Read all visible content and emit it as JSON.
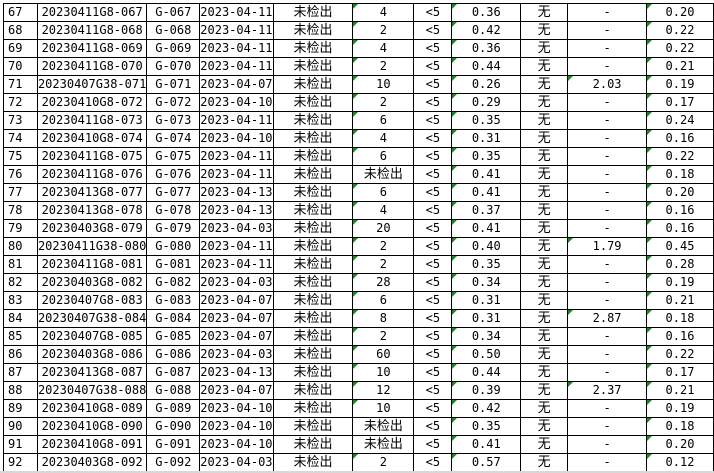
{
  "sheet": {
    "rows": [
      [
        "67",
        "20230411G8-067",
        "G-067",
        "2023-04-11",
        "未检出",
        "4",
        "<5",
        "0.36",
        "无",
        "-",
        "0.20"
      ],
      [
        "68",
        "20230411G8-068",
        "G-068",
        "2023-04-11",
        "未检出",
        "2",
        "<5",
        "0.42",
        "无",
        "-",
        "0.22"
      ],
      [
        "69",
        "20230411G8-069",
        "G-069",
        "2023-04-11",
        "未检出",
        "4",
        "<5",
        "0.36",
        "无",
        "-",
        "0.22"
      ],
      [
        "70",
        "20230411G8-070",
        "G-070",
        "2023-04-11",
        "未检出",
        "2",
        "<5",
        "0.44",
        "无",
        "-",
        "0.21"
      ],
      [
        "71",
        "20230407G38-071",
        "G-071",
        "2023-04-07",
        "未检出",
        "10",
        "<5",
        "0.26",
        "无",
        "2.03",
        "0.19"
      ],
      [
        "72",
        "20230410G8-072",
        "G-072",
        "2023-04-10",
        "未检出",
        "2",
        "<5",
        "0.29",
        "无",
        "-",
        "0.17"
      ],
      [
        "73",
        "20230411G8-073",
        "G-073",
        "2023-04-11",
        "未检出",
        "6",
        "<5",
        "0.35",
        "无",
        "-",
        "0.24"
      ],
      [
        "74",
        "20230410G8-074",
        "G-074",
        "2023-04-10",
        "未检出",
        "4",
        "<5",
        "0.31",
        "无",
        "-",
        "0.16"
      ],
      [
        "75",
        "20230411G8-075",
        "G-075",
        "2023-04-11",
        "未检出",
        "6",
        "<5",
        "0.35",
        "无",
        "-",
        "0.22"
      ],
      [
        "76",
        "20230411G8-076",
        "G-076",
        "2023-04-11",
        "未检出",
        "未检出",
        "<5",
        "0.41",
        "无",
        "-",
        "0.18"
      ],
      [
        "77",
        "20230413G8-077",
        "G-077",
        "2023-04-13",
        "未检出",
        "6",
        "<5",
        "0.41",
        "无",
        "-",
        "0.20"
      ],
      [
        "78",
        "20230413G8-078",
        "G-078",
        "2023-04-13",
        "未检出",
        "4",
        "<5",
        "0.37",
        "无",
        "-",
        "0.16"
      ],
      [
        "79",
        "20230403G8-079",
        "G-079",
        "2023-04-03",
        "未检出",
        "20",
        "<5",
        "0.41",
        "无",
        "-",
        "0.16"
      ],
      [
        "80",
        "20230411G38-080",
        "G-080",
        "2023-04-11",
        "未检出",
        "2",
        "<5",
        "0.40",
        "无",
        "1.79",
        "0.45"
      ],
      [
        "81",
        "20230411G8-081",
        "G-081",
        "2023-04-11",
        "未检出",
        "2",
        "<5",
        "0.35",
        "无",
        "-",
        "0.28"
      ],
      [
        "82",
        "20230403G8-082",
        "G-082",
        "2023-04-03",
        "未检出",
        "28",
        "<5",
        "0.34",
        "无",
        "-",
        "0.19"
      ],
      [
        "83",
        "20230407G8-083",
        "G-083",
        "2023-04-07",
        "未检出",
        "6",
        "<5",
        "0.31",
        "无",
        "-",
        "0.21"
      ],
      [
        "84",
        "20230407G38-084",
        "G-084",
        "2023-04-07",
        "未检出",
        "8",
        "<5",
        "0.31",
        "无",
        "2.87",
        "0.18"
      ],
      [
        "85",
        "20230407G8-085",
        "G-085",
        "2023-04-07",
        "未检出",
        "2",
        "<5",
        "0.34",
        "无",
        "-",
        "0.16"
      ],
      [
        "86",
        "20230403G8-086",
        "G-086",
        "2023-04-03",
        "未检出",
        "60",
        "<5",
        "0.50",
        "无",
        "-",
        "0.22"
      ],
      [
        "87",
        "20230413G8-087",
        "G-087",
        "2023-04-13",
        "未检出",
        "10",
        "<5",
        "0.44",
        "无",
        "-",
        "0.17"
      ],
      [
        "88",
        "20230407G38-088",
        "G-088",
        "2023-04-07",
        "未检出",
        "12",
        "<5",
        "0.39",
        "无",
        "2.37",
        "0.21"
      ],
      [
        "89",
        "20230410G8-089",
        "G-089",
        "2023-04-10",
        "未检出",
        "10",
        "<5",
        "0.42",
        "无",
        "-",
        "0.19"
      ],
      [
        "90",
        "20230410G8-090",
        "G-090",
        "2023-04-10",
        "未检出",
        "未检出",
        "<5",
        "0.35",
        "无",
        "-",
        "0.18"
      ],
      [
        "91",
        "20230410G8-091",
        "G-091",
        "2023-04-10",
        "未检出",
        "未检出",
        "<5",
        "0.41",
        "无",
        "-",
        "0.20"
      ],
      [
        "92",
        "20230403G8-092",
        "G-092",
        "2023-04-03",
        "未检出",
        "2",
        "<5",
        "0.57",
        "无",
        "-",
        "0.12"
      ]
    ],
    "indicator_color": "#1a8a1a"
  }
}
